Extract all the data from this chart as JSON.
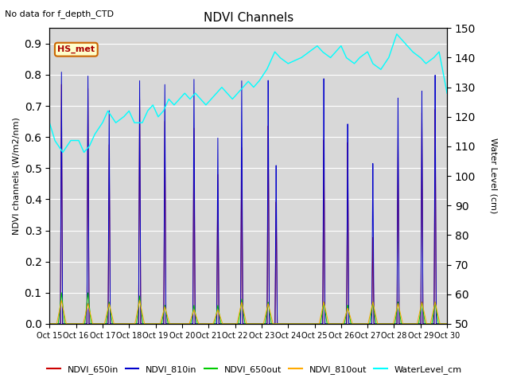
{
  "title": "NDVI Channels",
  "top_left_text": "No data for f_depth_CTD",
  "annotation_text": "HS_met",
  "ylabel_left": "NDVI channels (W/m2/nm)",
  "ylabel_right": "Water Level (cm)",
  "ylim_left": [
    0.0,
    0.95
  ],
  "ylim_right": [
    50,
    150
  ],
  "yticks_left": [
    0.0,
    0.1,
    0.2,
    0.3,
    0.4,
    0.5,
    0.6,
    0.7,
    0.8,
    0.9
  ],
  "yticks_right": [
    50,
    60,
    70,
    80,
    90,
    100,
    110,
    120,
    130,
    140,
    150
  ],
  "xtick_labels": [
    "Oct 15",
    "Oct 16",
    "Oct 17",
    "Oct 18",
    "Oct 19",
    "Oct 20",
    "Oct 21",
    "Oct 22",
    "Oct 23",
    "Oct 24",
    "Oct 25",
    "Oct 26",
    "Oct 27",
    "Oct 28",
    "Oct 29",
    "Oct 30"
  ],
  "background_color": "#e8e8e8",
  "plot_bg_color": "#d8d8d8",
  "colors": {
    "NDVI_650in": "#cc0000",
    "NDVI_810in": "#0000cc",
    "NDVI_650out": "#00cc00",
    "NDVI_810out": "#ffaa00",
    "WaterLevel_cm": "#00ffff"
  },
  "spike_810in": {
    "positions": [
      0.45,
      1.45,
      2.25,
      3.4,
      4.35,
      5.45,
      6.35,
      7.25,
      8.25,
      8.55,
      10.35,
      11.25,
      12.2,
      13.15,
      14.05,
      14.55
    ],
    "heights": [
      0.81,
      0.8,
      0.69,
      0.79,
      0.78,
      0.8,
      0.61,
      0.8,
      0.8,
      0.52,
      0.8,
      0.65,
      0.52,
      0.73,
      0.75,
      0.8
    ]
  },
  "spike_650in": {
    "positions": [
      0.45,
      1.45,
      2.25,
      3.4,
      4.35,
      5.45,
      6.35,
      7.25,
      8.25,
      8.55,
      10.35,
      11.25,
      12.2,
      13.15,
      14.05,
      14.55
    ],
    "heights": [
      0.77,
      0.76,
      0.58,
      0.73,
      0.66,
      0.64,
      0.49,
      0.58,
      0.65,
      0.4,
      0.6,
      0.59,
      0.28,
      0.6,
      0.68,
      0.69
    ]
  },
  "spike_650out": {
    "positions": [
      0.45,
      1.45,
      2.25,
      3.4,
      4.35,
      5.45,
      6.35,
      7.25,
      8.25,
      10.35,
      11.25,
      12.2,
      13.15,
      14.05,
      14.55
    ],
    "heights": [
      0.1,
      0.1,
      0.07,
      0.09,
      0.06,
      0.06,
      0.06,
      0.08,
      0.07,
      0.07,
      0.06,
      0.07,
      0.07,
      0.07,
      0.07
    ]
  },
  "spike_810out": {
    "positions": [
      0.45,
      1.45,
      2.25,
      3.4,
      4.35,
      5.45,
      6.35,
      7.25,
      8.25,
      10.35,
      11.25,
      12.2,
      13.15,
      14.05,
      14.55
    ],
    "heights": [
      0.075,
      0.065,
      0.065,
      0.075,
      0.055,
      0.045,
      0.045,
      0.07,
      0.065,
      0.07,
      0.05,
      0.07,
      0.065,
      0.07,
      0.07
    ]
  },
  "water_x": [
    0.0,
    0.2,
    0.5,
    0.8,
    1.1,
    1.3,
    1.5,
    1.7,
    2.0,
    2.2,
    2.5,
    2.8,
    3.0,
    3.2,
    3.5,
    3.7,
    3.9,
    4.1,
    4.3,
    4.5,
    4.7,
    4.9,
    5.1,
    5.3,
    5.5,
    5.7,
    5.9,
    6.1,
    6.3,
    6.5,
    6.7,
    6.9,
    7.1,
    7.3,
    7.5,
    7.7,
    7.9,
    8.2,
    8.5,
    8.7,
    9.0,
    9.5,
    9.8,
    10.1,
    10.3,
    10.6,
    10.8,
    11.0,
    11.2,
    11.5,
    11.7,
    12.0,
    12.2,
    12.5,
    12.8,
    13.1,
    13.3,
    13.5,
    13.7,
    14.0,
    14.2,
    14.5,
    14.7,
    15.0
  ],
  "water_y": [
    118,
    112,
    108,
    112,
    112,
    108,
    110,
    114,
    118,
    122,
    118,
    120,
    122,
    118,
    118,
    122,
    124,
    120,
    122,
    126,
    124,
    126,
    128,
    126,
    128,
    126,
    124,
    126,
    128,
    130,
    128,
    126,
    128,
    130,
    132,
    130,
    132,
    136,
    142,
    140,
    138,
    140,
    142,
    144,
    142,
    140,
    142,
    144,
    140,
    138,
    140,
    142,
    138,
    136,
    140,
    148,
    146,
    144,
    142,
    140,
    138,
    140,
    142,
    128
  ]
}
